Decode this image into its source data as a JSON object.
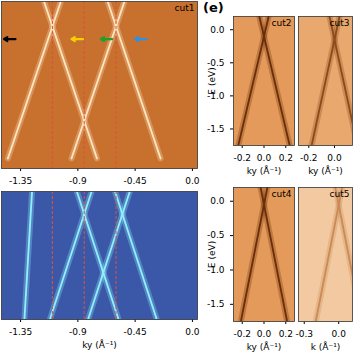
{
  "chart_data": [
    {
      "type": "line",
      "title": "cut1",
      "color": "#c8702e",
      "xlim": [
        -1.5,
        0.04
      ],
      "xticks": [
        -1.35,
        -0.9,
        -0.45,
        {
          "value": 0,
          "label": "0.0"
        }
      ],
      "ylim": [
        -1.8,
        0.2
      ],
      "tick_labels": "x",
      "series": [
        {
          "color": "#ffe6bf",
          "x": [
            -1.45,
            -1.034
          ],
          "values": [
            -1.68,
            0.2
          ]
        },
        {
          "color": "#ffe6bf",
          "x": [
            -0.75,
            -1.166
          ],
          "values": [
            -1.68,
            0.2
          ]
        },
        {
          "color": "#ffe6bf",
          "x": [
            -0.95,
            -0.534
          ],
          "values": [
            -1.68,
            0.2
          ]
        },
        {
          "color": "#ffe6bf",
          "x": [
            -0.25,
            -0.666
          ],
          "values": [
            -1.68,
            0.2
          ]
        }
      ],
      "reference_lines": {
        "x": [
          -1.1,
          -0.85,
          -0.6
        ],
        "color": "#e0503a",
        "line_style": "dashed"
      },
      "arrows": [
        {
          "x": -1.48,
          "y": -0.25,
          "color": "#000000"
        },
        {
          "x": -0.95,
          "y": -0.25,
          "color": "#f5d000"
        },
        {
          "x": -0.72,
          "y": -0.25,
          "color": "#1fa02a"
        },
        {
          "x": -0.45,
          "y": -0.25,
          "color": "#2f8fe0"
        }
      ]
    },
    {
      "type": "line",
      "color": "#3b58a8",
      "xlim": [
        -1.5,
        0.04
      ],
      "xticks": [
        -1.35,
        -0.9,
        -0.45,
        {
          "value": 0,
          "label": "0.0"
        }
      ],
      "xlabel": "ky (Å⁻¹)",
      "ylim": [
        -1.7,
        0.25
      ],
      "tick_labels": "x",
      "series": [
        {
          "color": "#8ff0ff",
          "x": [
            -1.12,
            -0.792
          ],
          "values": [
            -1.7,
            0.25
          ]
        },
        {
          "color": "#8ff0ff",
          "x": [
            -0.58,
            -0.908
          ],
          "values": [
            -1.7,
            0.25
          ]
        },
        {
          "color": "#8ff0ff",
          "x": [
            -0.82,
            -0.492
          ],
          "values": [
            -1.7,
            0.25
          ]
        },
        {
          "color": "#8ff0ff",
          "x": [
            -0.28,
            -0.608
          ],
          "values": [
            -1.7,
            0.25
          ]
        },
        {
          "color": "#8ff0ff",
          "x": [
            -1.32,
            -1.26
          ],
          "values": [
            -1.7,
            0.25
          ]
        }
      ],
      "reference_lines": {
        "x": [
          -1.1,
          -0.85,
          -0.6
        ],
        "color": "#e0503a",
        "line_style": "dashed"
      }
    },
    {
      "type": "line",
      "title": "cut2",
      "panel_label": "(e)",
      "color": "#e49a5a",
      "xlim": [
        -0.28,
        0.28
      ],
      "xticks": [
        -0.2,
        {
          "value": 0,
          "label": "0.0"
        },
        0.2
      ],
      "xlabel": "ky (Å⁻¹)",
      "ylim": [
        -1.75,
        0.2
      ],
      "yticks": [
        {
          "value": 0,
          "label": "0.0"
        },
        -0.5,
        {
          "value": -1,
          "label": "-1.0"
        },
        -1.5
      ],
      "ylabel": "E (eV)",
      "series": [
        {
          "color": "#6b2e0a",
          "x": [
            -0.236,
            0.043
          ],
          "values": [
            -1.75,
            0.2
          ]
        },
        {
          "color": "#6b2e0a",
          "x": [
            0.236,
            -0.043
          ],
          "values": [
            -1.75,
            0.2
          ]
        }
      ]
    },
    {
      "type": "line",
      "title": "cut3",
      "color": "#e8a86e",
      "xlim": [
        -0.28,
        0.14
      ],
      "xticks": [
        -0.2,
        {
          "value": 0,
          "label": "0.0"
        }
      ],
      "xlabel": "ky (Å⁻¹)",
      "ylim": [
        -1.75,
        0.2
      ],
      "tick_labels": "x",
      "series": [
        {
          "color": "#8a4a1a",
          "x": [
            -0.178,
            0.039
          ],
          "values": [
            -1.75,
            0.2
          ]
        },
        {
          "color": "#8a4a1a",
          "x": [
            0.178,
            -0.039
          ],
          "values": [
            -1.75,
            0.2
          ]
        }
      ]
    },
    {
      "type": "line",
      "title": "cut4",
      "color": "#e49a5a",
      "xlim": [
        -0.28,
        0.28
      ],
      "xticks": [
        -0.2,
        {
          "value": 0,
          "label": "0.0"
        },
        0.2
      ],
      "xlabel": "ky (Å⁻¹)",
      "ylim": [
        -1.75,
        0.2
      ],
      "yticks": [
        {
          "value": 0,
          "label": "0.0"
        },
        -0.5,
        {
          "value": -1,
          "label": "-1.0"
        },
        -1.5
      ],
      "ylabel": "E (eV)",
      "series": [
        {
          "color": "#6b2e0a",
          "x": [
            -0.2125,
            0.031
          ],
          "values": [
            -1.75,
            0.2
          ]
        },
        {
          "color": "#6b2e0a",
          "x": [
            0.2125,
            -0.031
          ],
          "values": [
            -1.75,
            0.2
          ]
        }
      ]
    },
    {
      "type": "line",
      "title": "cut5",
      "color": "#f2c9a0",
      "xlim": [
        -0.35,
        0.12
      ],
      "xticks": [
        -0.3,
        {
          "value": 0,
          "label": "0.0"
        }
      ],
      "xlabel": "k (Å⁻¹)",
      "ylim": [
        -1.75,
        0.2
      ],
      "tick_labels": "x",
      "series": [
        {
          "color": "#c98a55",
          "x": [
            -0.2,
            0.03
          ],
          "values": [
            -1.75,
            0.2
          ]
        },
        {
          "color": "#c98a55",
          "x": [
            0.2,
            -0.03
          ],
          "values": [
            -1.75,
            0.2
          ]
        }
      ]
    }
  ]
}
